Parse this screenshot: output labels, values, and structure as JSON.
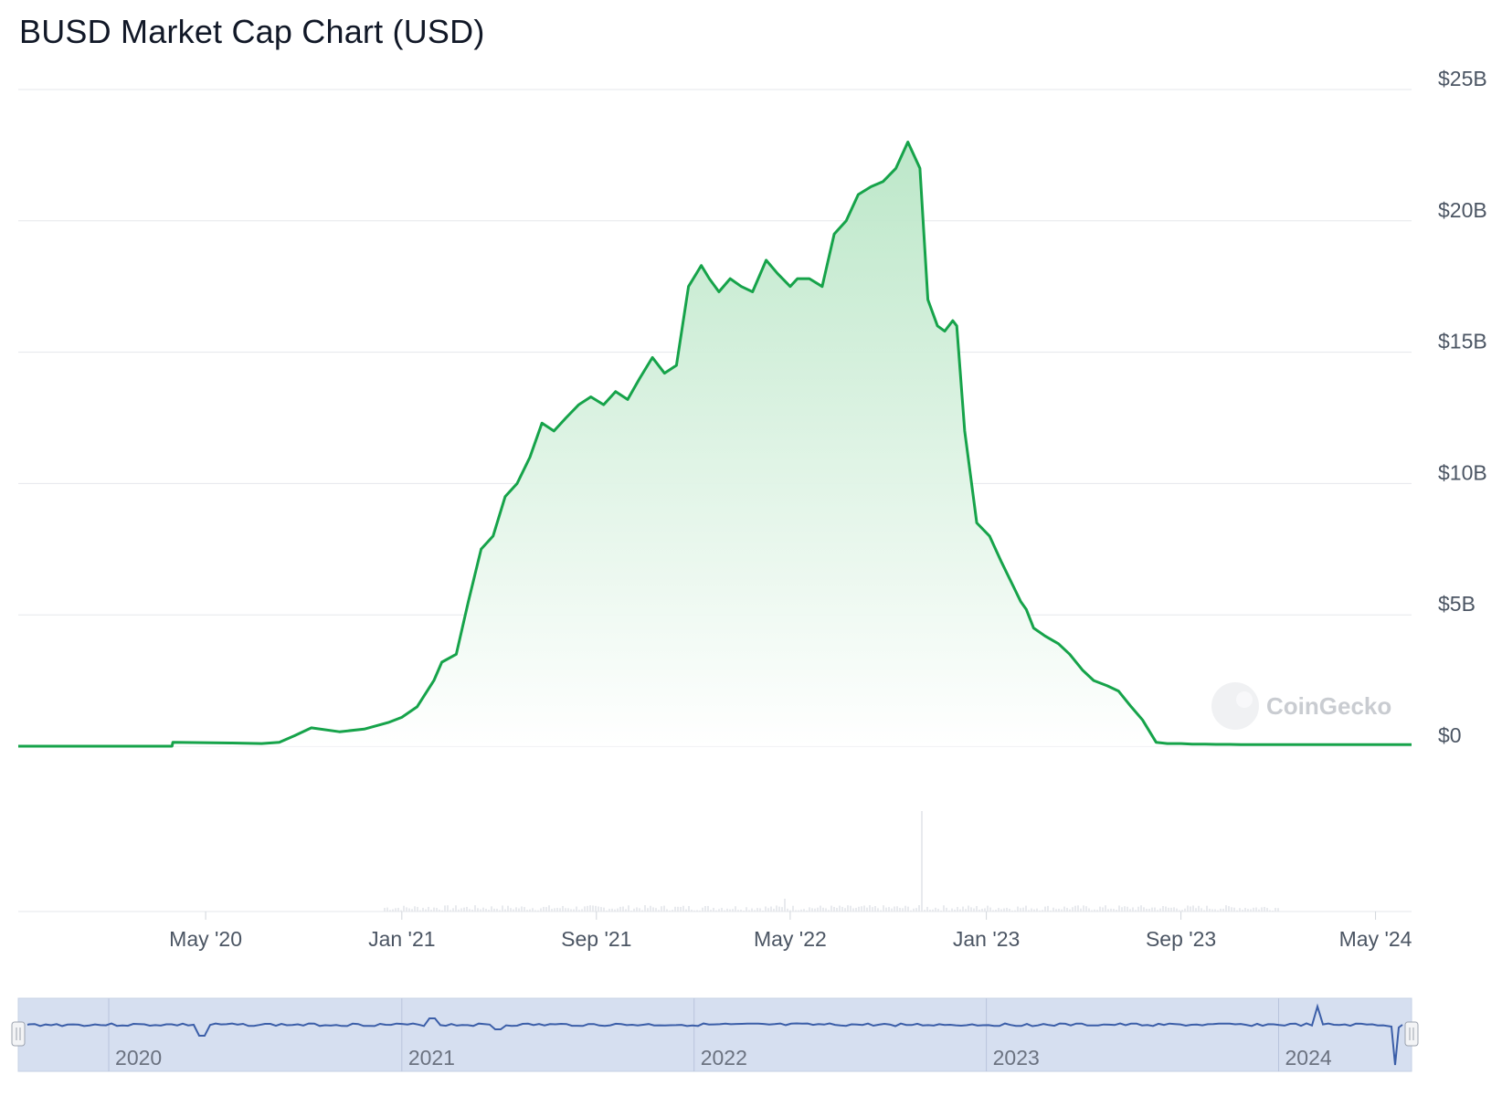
{
  "title": "BUSD Market Cap Chart (USD)",
  "watermark": "CoinGecko",
  "colors": {
    "line": "#16a34a",
    "area_top": "#b9e6c6",
    "area_bottom": "#ffffff",
    "grid": "#e5e7eb",
    "navigator_fill": "#d6dff0",
    "navigator_line": "#3b5ea8",
    "volume": "#e8eaee"
  },
  "chart_data": {
    "type": "area",
    "title": "BUSD Market Cap Chart (USD)",
    "xlabel": "",
    "ylabel": "",
    "ylim": [
      0,
      25
    ],
    "y_unit": "billion USD",
    "y_ticks": [
      "$0",
      "$5B",
      "$10B",
      "$15B",
      "$20B",
      "$25B"
    ],
    "x_ticks": [
      "May '20",
      "Jan '21",
      "Sep '21",
      "May '22",
      "Jan '23",
      "Sep '23",
      "May '24"
    ],
    "grid": true,
    "legend": "none",
    "series": [
      {
        "x": [
          "2019-09-10",
          "2020-03-20",
          "2020-03-21",
          "2020-06-01",
          "2020-07-10",
          "2020-08-01",
          "2020-08-20",
          "2020-09-10",
          "2020-10-15",
          "2020-11-15",
          "2020-12-15",
          "2021-01-01",
          "2021-01-20",
          "2021-02-10",
          "2021-02-20",
          "2021-03-10",
          "2021-03-25",
          "2021-04-10",
          "2021-04-25",
          "2021-05-10",
          "2021-05-25",
          "2021-06-10",
          "2021-06-25",
          "2021-07-10",
          "2021-07-25",
          "2021-08-10",
          "2021-08-25",
          "2021-09-10",
          "2021-09-25",
          "2021-10-10",
          "2021-10-25",
          "2021-11-10",
          "2021-11-25",
          "2021-12-10",
          "2021-12-25",
          "2022-01-10",
          "2022-01-20",
          "2022-02-01",
          "2022-02-15",
          "2022-03-01",
          "2022-03-15",
          "2022-04-01",
          "2022-04-15",
          "2022-05-01",
          "2022-05-10",
          "2022-05-25",
          "2022-06-10",
          "2022-06-25",
          "2022-07-10",
          "2022-07-25",
          "2022-08-10",
          "2022-08-25",
          "2022-09-10",
          "2022-09-25",
          "2022-10-10",
          "2022-10-20",
          "2022-11-01",
          "2022-11-10",
          "2022-11-20",
          "2022-11-25",
          "2022-12-05",
          "2022-12-20",
          "2023-01-05",
          "2023-01-20",
          "2023-02-05",
          "2023-02-13",
          "2023-02-20",
          "2023-03-01",
          "2023-03-15",
          "2023-04-01",
          "2023-04-15",
          "2023-05-01",
          "2023-05-15",
          "2023-06-01",
          "2023-06-15",
          "2023-07-01",
          "2023-07-15",
          "2023-08-01",
          "2023-08-15",
          "2023-09-01",
          "2023-09-15",
          "2023-10-01",
          "2023-10-15",
          "2023-11-01",
          "2023-11-15",
          "2023-12-01",
          "2023-12-15",
          "2023-12-25",
          "2024-01-01",
          "2024-01-05",
          "2024-03-01",
          "2024-06-15"
        ],
        "values": [
          0.0,
          0.0,
          0.15,
          0.12,
          0.1,
          0.15,
          0.4,
          0.7,
          0.55,
          0.65,
          0.9,
          1.1,
          1.5,
          2.5,
          3.2,
          3.5,
          5.5,
          7.5,
          8.0,
          9.5,
          10.0,
          11.0,
          12.3,
          12.0,
          12.5,
          13.0,
          13.3,
          13.0,
          13.5,
          13.2,
          14.0,
          14.8,
          14.2,
          14.5,
          17.5,
          18.3,
          17.8,
          17.3,
          17.8,
          17.5,
          17.3,
          18.5,
          18.0,
          17.5,
          17.8,
          17.8,
          17.5,
          19.5,
          20.0,
          21.0,
          21.3,
          21.5,
          22.0,
          23.0,
          22.0,
          17.0,
          16.0,
          15.8,
          16.2,
          16.0,
          12.0,
          8.5,
          8.0,
          7.0,
          6.0,
          5.5,
          5.2,
          4.5,
          4.2,
          3.9,
          3.5,
          2.9,
          2.5,
          2.3,
          2.1,
          1.5,
          1.0,
          0.15,
          0.1,
          0.1,
          0.08,
          0.08,
          0.07,
          0.07,
          0.06,
          0.06,
          0.06,
          0.06,
          0.06,
          0.06,
          0.06,
          0.06
        ]
      }
    ],
    "navigator": {
      "labels": [
        "2020",
        "2021",
        "2022",
        "2023",
        "2024"
      ]
    }
  }
}
